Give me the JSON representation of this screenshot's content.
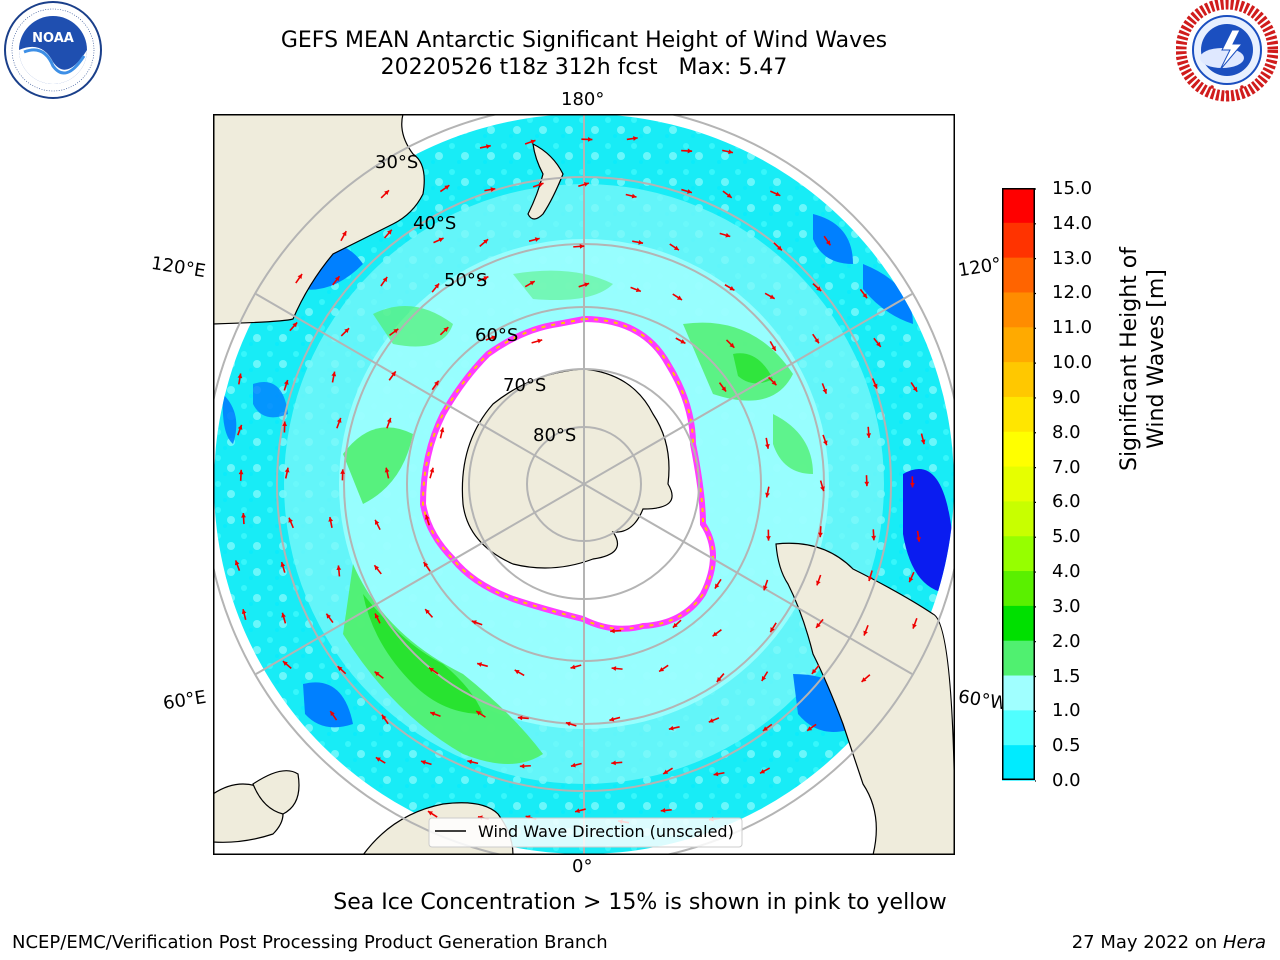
{
  "header": {
    "title_line1": "GEFS MEAN Antarctic Significant Height of Wind Waves",
    "title_line2": "20220526 t18z 312h fcst   Max: 5.47"
  },
  "logos": {
    "left": {
      "name": "noaa-logo",
      "center_text": "NOAA",
      "ring_text": "NATIONAL OCEANIC AND ATMOSPHERIC ADMINISTRATION • U.S. DEPARTMENT OF COMMERCE"
    },
    "right": {
      "name": "nws-logo",
      "ring_text": "NATIONAL WEATHER SERVICE"
    }
  },
  "map": {
    "projection": "south-polar-stereographic",
    "longitude_labels": {
      "top": "180°",
      "bottom": "0°",
      "upper_left": "120°E",
      "lower_left": "60°E",
      "upper_right": "120°",
      "lower_right": "60°W"
    },
    "latitude_labels": [
      "30°S",
      "40°S",
      "50°S",
      "60°S",
      "70°S",
      "80°S"
    ],
    "legend_label": "Wind Wave Direction (unscaled)",
    "colors": {
      "land": "#efecdc",
      "sea_ice": "#ffffff",
      "ice_edge_pink": "#ff3cff",
      "ice_edge_yellow": "#ffc800",
      "grid": "#b4b4b4",
      "arrow": "#ee0000"
    }
  },
  "colorbar": {
    "title": "Significant Height of Wind Waves [m]",
    "tick_labels": [
      "15.0",
      "14.0",
      "13.0",
      "12.0",
      "11.0",
      "10.0",
      "9.0",
      "8.0",
      "7.0",
      "6.0",
      "5.0",
      "4.0",
      "3.0",
      "2.0",
      "1.5",
      "1.0",
      "0.5",
      "0.0"
    ],
    "colors_top_to_bottom": [
      "#ff0000",
      "#ff3300",
      "#ff6400",
      "#ff8c00",
      "#ffaa00",
      "#ffc800",
      "#ffe600",
      "#ffff00",
      "#e6ff00",
      "#c8ff00",
      "#96ff00",
      "#5af000",
      "#00e000",
      "#50f070",
      "#a0ffff",
      "#50ffff",
      "#00ebff",
      "#0080ff",
      "#0000ff"
    ]
  },
  "footer": {
    "caption": "Sea Ice Concentration > 15% is shown in pink to yellow",
    "left": "NCEP/EMC/Verification Post Processing Product Generation Branch",
    "right_date": "27 May 2022 on ",
    "right_host": "Hera"
  }
}
